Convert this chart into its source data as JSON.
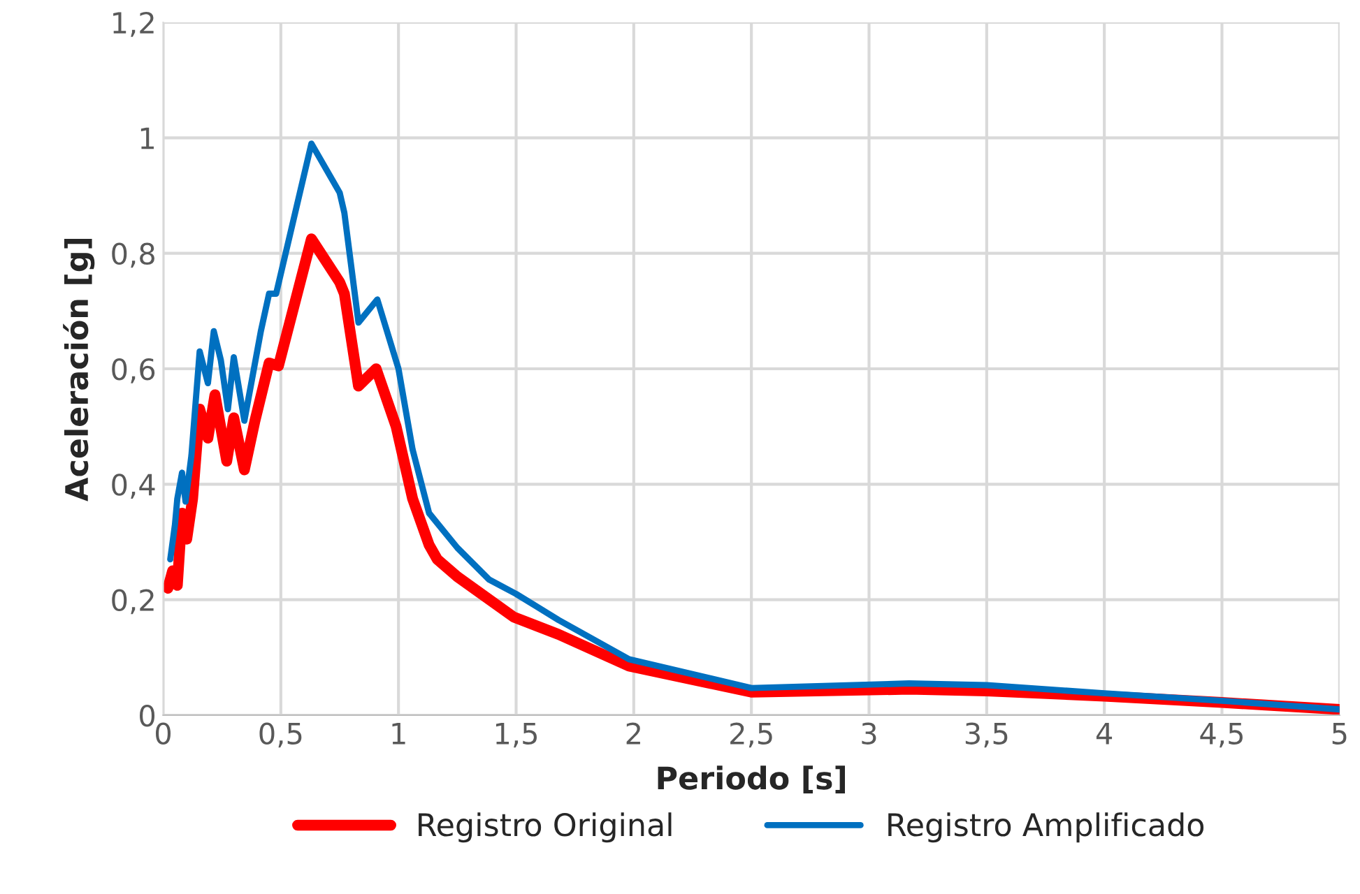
{
  "chart_data": {
    "type": "line",
    "xlabel": "Periodo [s]",
    "ylabel": "Aceleración [g]",
    "xlim": [
      0,
      5
    ],
    "ylim": [
      0,
      1.2
    ],
    "xticks": [
      0,
      {
        "value": 0.5,
        "label": "0,5"
      },
      1,
      {
        "value": 1.5,
        "label": "1,5"
      },
      2,
      {
        "value": 2.5,
        "label": "2,5"
      },
      3,
      {
        "value": 3.5,
        "label": "3,5"
      },
      4,
      {
        "value": 4.5,
        "label": "4,5"
      },
      5
    ],
    "yticks": [
      0,
      {
        "value": 0.2,
        "label": "0,2"
      },
      {
        "value": 0.4,
        "label": "0,4"
      },
      {
        "value": 0.6,
        "label": "0,6"
      },
      {
        "value": 0.8,
        "label": "0,8"
      },
      1,
      {
        "value": 1.2,
        "label": "1,2"
      }
    ],
    "grid": true,
    "legend": "bottom",
    "marker": "none",
    "line_style": "solid",
    "series": [
      {
        "name": "Registro Original",
        "color": "#ff0000",
        "x": [
          0.02,
          0.04,
          0.06,
          0.08,
          0.1,
          0.125,
          0.155,
          0.19,
          0.22,
          0.27,
          0.3,
          0.345,
          0.39,
          0.45,
          0.49,
          0.63,
          0.75,
          0.77,
          0.83,
          0.905,
          0.99,
          1.06,
          1.13,
          1.165,
          1.25,
          1.49,
          1.68,
          1.98,
          2.5,
          3.17,
          3.5,
          4,
          4.5,
          5
        ],
        "values": [
          0.22,
          0.25,
          0.225,
          0.35,
          0.305,
          0.375,
          0.53,
          0.48,
          0.555,
          0.44,
          0.515,
          0.425,
          0.51,
          0.61,
          0.605,
          0.825,
          0.75,
          0.73,
          0.57,
          0.6,
          0.5,
          0.375,
          0.295,
          0.27,
          0.24,
          0.17,
          0.14,
          0.085,
          0.04,
          0.045,
          0.042,
          0.033,
          0.022,
          0.01
        ]
      },
      {
        "name": "Registro Amplificado",
        "color": "#0070c0",
        "x": [
          0.03,
          0.05,
          0.06,
          0.08,
          0.095,
          0.12,
          0.155,
          0.19,
          0.215,
          0.245,
          0.275,
          0.3,
          0.345,
          0.415,
          0.45,
          0.48,
          0.63,
          0.75,
          0.77,
          0.83,
          0.91,
          1.0,
          1.06,
          1.13,
          1.25,
          1.385,
          1.5,
          1.68,
          1.98,
          2.5,
          3.17,
          3.5,
          4,
          4.5,
          5
        ],
        "values": [
          0.27,
          0.33,
          0.375,
          0.42,
          0.37,
          0.45,
          0.63,
          0.575,
          0.665,
          0.615,
          0.53,
          0.62,
          0.51,
          0.665,
          0.73,
          0.73,
          0.99,
          0.905,
          0.87,
          0.68,
          0.72,
          0.6,
          0.46,
          0.35,
          0.29,
          0.235,
          0.21,
          0.165,
          0.097,
          0.047,
          0.055,
          0.052,
          0.038,
          0.025,
          0.01
        ]
      }
    ]
  }
}
